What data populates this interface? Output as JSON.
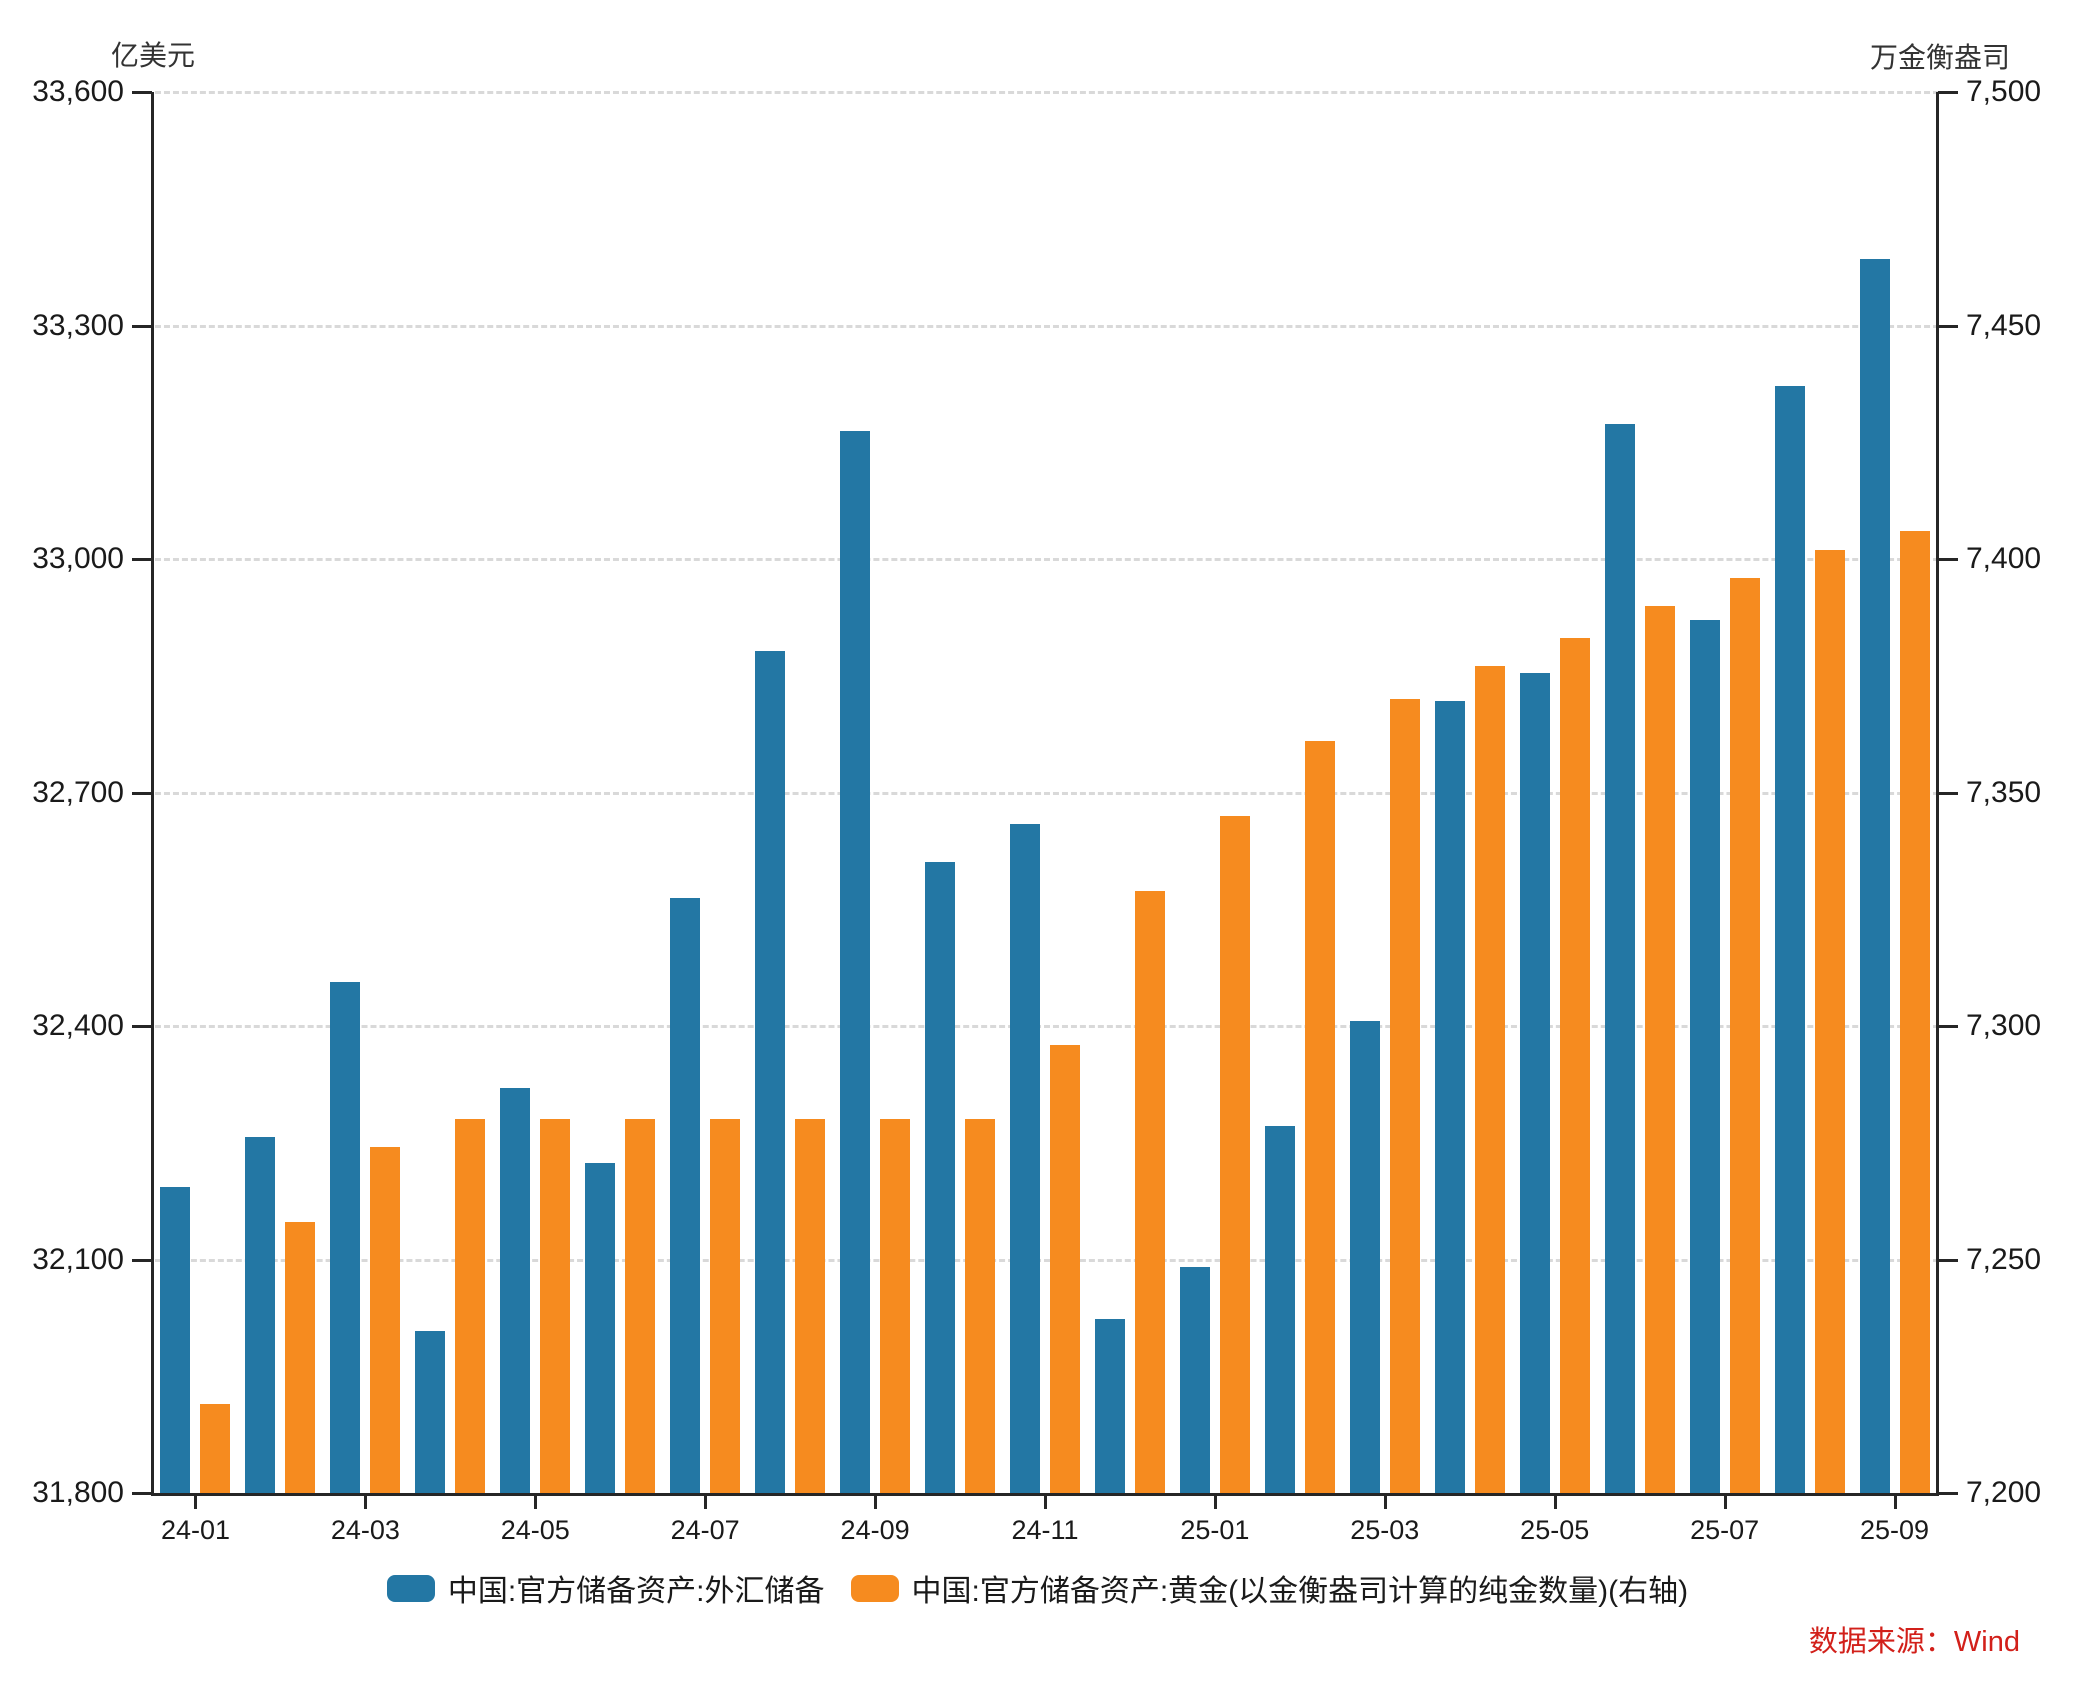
{
  "chart_data": {
    "type": "bar",
    "dual_axis": true,
    "grid": "horizontal-dashed",
    "legend_position": "bottom",
    "categories": [
      "24-01",
      "24-02",
      "24-03",
      "24-04",
      "24-05",
      "24-06",
      "24-07",
      "24-08",
      "24-09",
      "24-10",
      "24-11",
      "24-12",
      "25-01",
      "25-02",
      "25-03",
      "25-04",
      "25-05",
      "25-06",
      "25-07",
      "25-08",
      "25-09"
    ],
    "x_tick_labels": [
      "24-01",
      "24-03",
      "24-05",
      "24-07",
      "24-09",
      "24-11",
      "25-01",
      "25-03",
      "25-05",
      "25-07",
      "25-09"
    ],
    "series": [
      {
        "name": "中国:官方储备资产:外汇储备",
        "axis": "left",
        "color": "#2377A4",
        "values": [
          32193,
          32258,
          32457,
          32008,
          32320,
          32224,
          32564,
          32882,
          33164,
          32611,
          32659,
          32024,
          32090,
          32272,
          32407,
          32817,
          32853,
          33174,
          32922,
          33222,
          33386
        ]
      },
      {
        "name": "中国:官方储备资产:黄金(以金衡盎司计算的纯金数量)(右轴)",
        "axis": "right",
        "color": "#F68B1F",
        "values": [
          7219,
          7258,
          7274,
          7280,
          7280,
          7280,
          7280,
          7280,
          7280,
          7280,
          7296,
          7329,
          7345,
          7361,
          7370,
          7377,
          7383,
          7390,
          7396,
          7402,
          7406
        ]
      }
    ],
    "left_axis": {
      "title": "亿美元",
      "min": 31800,
      "max": 33600,
      "step": 300
    },
    "right_axis": {
      "title": "万金衡盎司",
      "min": 7200,
      "max": 7500,
      "step": 50
    }
  },
  "source_note": "数据来源：Wind",
  "colors": {
    "fx_blue": "#2377A4",
    "gold_orange": "#F68B1F",
    "source_red": "#D2201A",
    "gridline": "#d9d9d9",
    "axis": "#262626",
    "text": "#1a1a1a"
  }
}
